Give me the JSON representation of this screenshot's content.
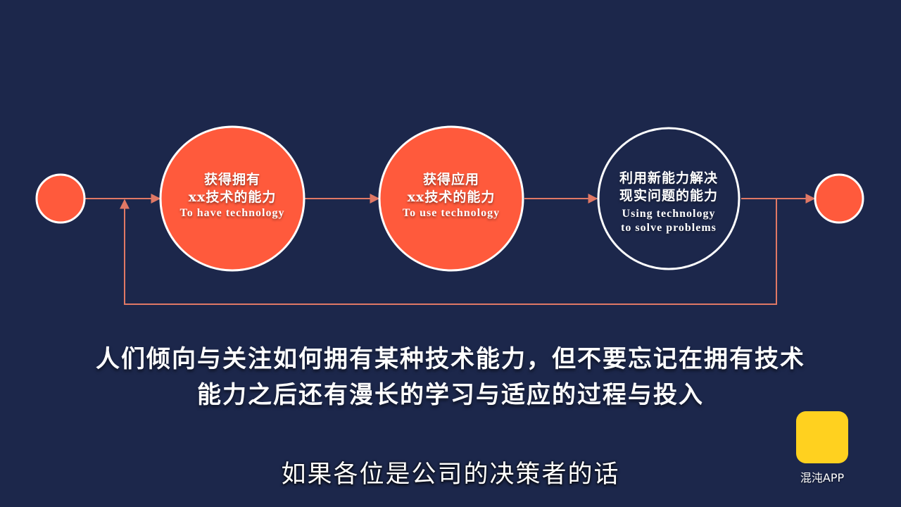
{
  "diagram": {
    "nodes": [
      {
        "id": "start",
        "title_lines": [],
        "subtitle_lines": []
      },
      {
        "id": "have",
        "title_lines": [
          "获得拥有",
          "xx技术的能力"
        ],
        "subtitle_lines": [
          "To have technology"
        ]
      },
      {
        "id": "use",
        "title_lines": [
          "获得应用",
          "xx技术的能力"
        ],
        "subtitle_lines": [
          "To use technology"
        ]
      },
      {
        "id": "solve",
        "title_lines": [
          "利用新能力解决",
          "现实问题的能力"
        ],
        "subtitle_lines": [
          "Using technology",
          "to solve problems"
        ]
      },
      {
        "id": "end",
        "title_lines": [],
        "subtitle_lines": []
      }
    ],
    "edges": [
      {
        "from": "start",
        "to": "have"
      },
      {
        "from": "have",
        "to": "use"
      },
      {
        "from": "use",
        "to": "solve"
      },
      {
        "from": "solve",
        "to": "end"
      },
      {
        "from": "solve",
        "to": "have",
        "type": "feedback-loop"
      }
    ]
  },
  "caption": {
    "line1": "人们倾向与关注如何拥有某种技术能力，但不要忘记在拥有技术",
    "line2": "能力之后还有漫长的学习与适应的过程与投入"
  },
  "subtitle": "如果各位是公司的决策者的话",
  "watermark": {
    "label": "混沌APP"
  },
  "colors": {
    "background": "#1c274b",
    "accent": "#ff5a3c",
    "connector": "#e07865",
    "dark_node": "#1c274b",
    "node_border": "#ffffff",
    "logo": "#ffd11f"
  }
}
